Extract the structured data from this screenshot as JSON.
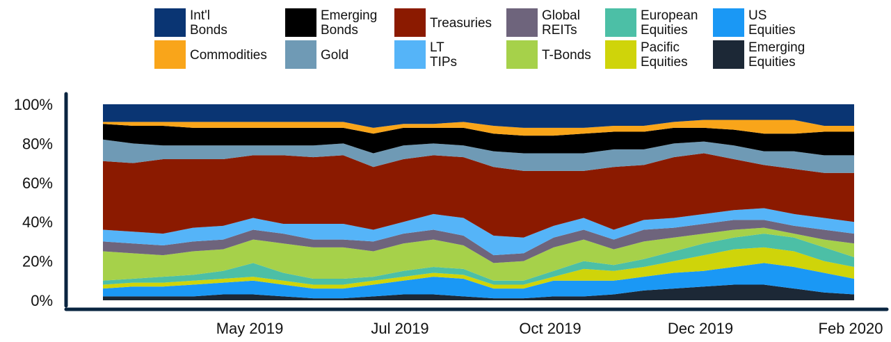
{
  "chart_data": {
    "type": "stacked_area",
    "categories": [
      null,
      null,
      null,
      null,
      null,
      "May 2019",
      null,
      null,
      null,
      null,
      "Jul 2019",
      null,
      null,
      null,
      null,
      "Oct 2019",
      null,
      null,
      null,
      null,
      "Dec 2019",
      null,
      null,
      null,
      null,
      "Feb 2020"
    ],
    "series": [
      {
        "name": "Int'l Bonds",
        "color": "#0a3573",
        "values": [
          9,
          9,
          9,
          9,
          9,
          9,
          9,
          9,
          9,
          12,
          10,
          10,
          9,
          11,
          12,
          12,
          12,
          11,
          11,
          9,
          8,
          8,
          8,
          8,
          11,
          11
        ]
      },
      {
        "name": "Commodities",
        "color": "#f9a51a",
        "values": [
          1,
          2,
          2,
          3,
          3,
          3,
          3,
          3,
          3,
          3,
          2,
          2,
          3,
          4,
          4,
          4,
          3,
          3,
          3,
          3,
          4,
          5,
          7,
          7,
          3,
          3
        ]
      },
      {
        "name": "Emerging Bonds",
        "color": "#000000",
        "values": [
          8,
          9,
          10,
          9,
          9,
          9,
          9,
          9,
          8,
          10,
          9,
          8,
          9,
          9,
          9,
          9,
          10,
          9,
          9,
          8,
          7,
          8,
          9,
          9,
          12,
          12
        ]
      },
      {
        "name": "Gold",
        "color": "#6f9ab5",
        "values": [
          11,
          10,
          7,
          7,
          7,
          5,
          5,
          6,
          6,
          7,
          7,
          6,
          6,
          8,
          9,
          9,
          9,
          9,
          8,
          7,
          6,
          7,
          7,
          9,
          9,
          9
        ]
      },
      {
        "name": "Treasuries",
        "color": "#8b1a00",
        "values": [
          35,
          35,
          38,
          35,
          34,
          32,
          35,
          34,
          35,
          32,
          32,
          30,
          31,
          35,
          34,
          28,
          24,
          32,
          28,
          31,
          31,
          26,
          22,
          23,
          23,
          25
        ]
      },
      {
        "name": "LT TIPs",
        "color": "#55b4f8",
        "values": [
          6,
          6,
          6,
          7,
          7,
          6,
          5,
          8,
          8,
          6,
          6,
          8,
          9,
          10,
          8,
          6,
          6,
          5,
          5,
          5,
          5,
          5,
          6,
          6,
          6,
          6
        ]
      },
      {
        "name": "Global REITs",
        "color": "#6e647c",
        "values": [
          5,
          5,
          5,
          5,
          5,
          5,
          5,
          4,
          4,
          5,
          5,
          5,
          5,
          4,
          4,
          5,
          5,
          5,
          6,
          5,
          5,
          5,
          4,
          4,
          5,
          5
        ]
      },
      {
        "name": "T-Bonds",
        "color": "#a6d14a",
        "values": [
          15,
          13,
          11,
          12,
          11,
          12,
          15,
          16,
          16,
          13,
          14,
          14,
          12,
          9,
          10,
          12,
          11,
          8,
          9,
          7,
          5,
          4,
          3,
          2,
          4,
          7
        ]
      },
      {
        "name": "European Equities",
        "color": "#4cbfa6",
        "values": [
          2,
          2,
          3,
          3,
          4,
          7,
          4,
          3,
          3,
          2,
          3,
          3,
          3,
          2,
          2,
          3,
          4,
          3,
          4,
          5,
          6,
          6,
          7,
          7,
          7,
          5
        ]
      },
      {
        "name": "Pacific Equities",
        "color": "#cfd40a",
        "values": [
          2,
          2,
          2,
          2,
          2,
          2,
          2,
          2,
          2,
          2,
          2,
          2,
          2,
          2,
          2,
          2,
          6,
          5,
          5,
          6,
          8,
          9,
          8,
          8,
          6,
          6
        ]
      },
      {
        "name": "US Equities",
        "color": "#1a98f5",
        "values": [
          4,
          5,
          5,
          6,
          6,
          7,
          6,
          5,
          5,
          6,
          7,
          9,
          9,
          5,
          5,
          8,
          8,
          7,
          7,
          8,
          8,
          9,
          11,
          11,
          10,
          8
        ]
      },
      {
        "name": "Emerging Equities",
        "color": "#1c2836",
        "values": [
          2,
          2,
          2,
          2,
          3,
          3,
          2,
          1,
          1,
          2,
          3,
          3,
          2,
          1,
          1,
          2,
          2,
          3,
          5,
          6,
          7,
          8,
          8,
          6,
          4,
          3
        ]
      }
    ],
    "ylim": [
      0,
      100
    ],
    "yticks": [
      {
        "value": 0,
        "label": "0%"
      },
      {
        "value": 20,
        "label": "20%"
      },
      {
        "value": 40,
        "label": "40%"
      },
      {
        "value": 60,
        "label": "60%"
      },
      {
        "value": 80,
        "label": "80%"
      },
      {
        "value": 100,
        "label": "100%"
      }
    ]
  }
}
